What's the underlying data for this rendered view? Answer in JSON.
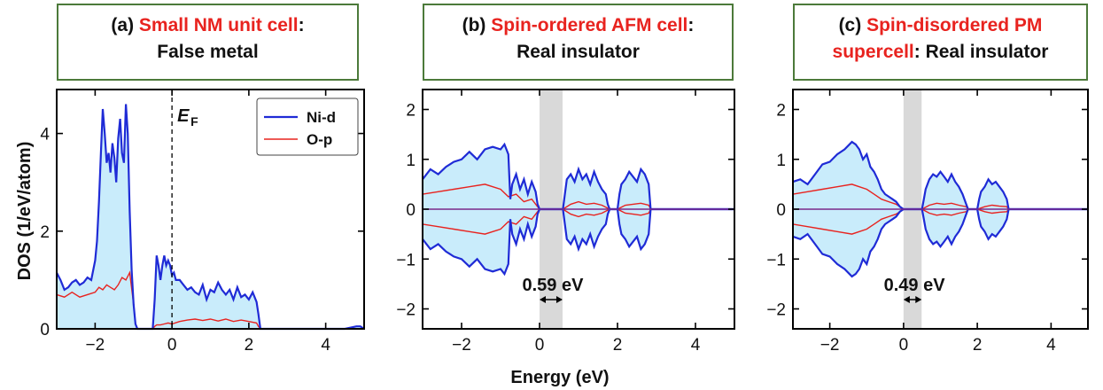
{
  "chart_data": [
    {
      "type": "area",
      "panel_label": "(a)",
      "title_red": "Small NM unit cell",
      "title_rest_line1": ":",
      "title_line2": "False metal",
      "ylabel": "DOS (1/eV/atom)",
      "xlim": [
        -3,
        5
      ],
      "ylim": [
        0,
        4.9
      ],
      "xticks": [
        -2,
        0,
        2,
        4
      ],
      "yticks": [
        0,
        2,
        4
      ],
      "fermi_label_main": "E",
      "fermi_label_sub": "F",
      "legend": [
        "Ni-d",
        "O-p"
      ],
      "series": [
        {
          "name": "Ni-d",
          "color": "#1f2bd6",
          "x": [
            -3.0,
            -2.9,
            -2.8,
            -2.7,
            -2.6,
            -2.5,
            -2.4,
            -2.3,
            -2.2,
            -2.1,
            -2.0,
            -1.95,
            -1.9,
            -1.85,
            -1.8,
            -1.75,
            -1.7,
            -1.65,
            -1.6,
            -1.55,
            -1.5,
            -1.45,
            -1.4,
            -1.35,
            -1.3,
            -1.25,
            -1.2,
            -1.15,
            -1.1,
            -1.05,
            -1.0,
            -0.95,
            -0.9,
            -0.5,
            -0.45,
            -0.4,
            -0.35,
            -0.3,
            -0.25,
            -0.2,
            -0.15,
            -0.1,
            -0.05,
            0.0,
            0.05,
            0.1,
            0.2,
            0.3,
            0.4,
            0.5,
            0.6,
            0.7,
            0.8,
            0.9,
            1.0,
            1.1,
            1.2,
            1.3,
            1.4,
            1.5,
            1.6,
            1.7,
            1.8,
            1.9,
            2.0,
            2.1,
            2.2,
            2.25,
            2.3,
            2.5,
            3.0,
            3.5,
            4.0,
            4.5,
            4.8,
            4.9,
            5.0
          ],
          "values": [
            1.15,
            1.0,
            0.8,
            0.85,
            0.95,
            1.0,
            0.9,
            0.95,
            1.05,
            1.0,
            1.4,
            1.8,
            2.6,
            3.6,
            4.5,
            4.0,
            3.4,
            3.6,
            3.2,
            3.8,
            3.5,
            3.0,
            3.9,
            4.3,
            3.6,
            3.4,
            4.6,
            4.0,
            2.4,
            1.2,
            0.5,
            0.1,
            0.0,
            0.0,
            0.6,
            1.5,
            1.3,
            1.0,
            1.3,
            1.5,
            1.3,
            1.4,
            1.3,
            1.1,
            1.15,
            1.0,
            1.0,
            0.9,
            0.8,
            0.85,
            0.75,
            0.7,
            0.9,
            0.6,
            0.8,
            0.75,
            0.95,
            0.8,
            0.7,
            0.8,
            0.6,
            0.85,
            0.65,
            0.7,
            0.6,
            0.75,
            0.55,
            0.3,
            0.0,
            0.0,
            0.0,
            0.0,
            0.0,
            0.0,
            0.05,
            0.05,
            0.0
          ]
        },
        {
          "name": "O-p",
          "color": "#e8231f",
          "x": [
            -3.0,
            -2.8,
            -2.6,
            -2.4,
            -2.2,
            -2.0,
            -1.9,
            -1.8,
            -1.7,
            -1.6,
            -1.5,
            -1.4,
            -1.3,
            -1.2,
            -1.1,
            -1.0,
            -0.95,
            -0.9,
            -0.5,
            -0.45,
            -0.4,
            -0.3,
            -0.2,
            -0.1,
            0.0,
            0.2,
            0.4,
            0.6,
            0.8,
            1.0,
            1.2,
            1.4,
            1.6,
            1.8,
            2.0,
            2.2,
            2.25,
            2.3,
            5.0
          ],
          "values": [
            0.7,
            0.65,
            0.75,
            0.65,
            0.7,
            0.75,
            0.85,
            0.8,
            0.9,
            0.85,
            0.8,
            0.9,
            1.05,
            1.0,
            1.15,
            0.5,
            0.1,
            0.0,
            0.0,
            0.05,
            0.08,
            0.08,
            0.1,
            0.12,
            0.1,
            0.15,
            0.18,
            0.2,
            0.17,
            0.2,
            0.16,
            0.2,
            0.15,
            0.18,
            0.15,
            0.12,
            0.05,
            0.0,
            0.0
          ]
        }
      ]
    },
    {
      "type": "area",
      "panel_label": "(b)",
      "title_red": "Spin-ordered AFM cell",
      "title_rest_line1": ":",
      "title_line2": "Real insulator",
      "xlim": [
        -3,
        5
      ],
      "ylim": [
        -2.4,
        2.4
      ],
      "xticks": [
        -2,
        0,
        2,
        4
      ],
      "yticks": [
        -2,
        -1,
        0,
        1,
        2
      ],
      "gap": [
        0,
        0.59
      ],
      "gap_label": "0.59 eV",
      "series": [
        {
          "name": "Ni-d",
          "color": "#1f2bd6",
          "x": [
            -3.0,
            -2.8,
            -2.6,
            -2.4,
            -2.2,
            -2.0,
            -1.8,
            -1.6,
            -1.4,
            -1.2,
            -1.0,
            -0.9,
            -0.8,
            -0.75,
            -0.7,
            -0.6,
            -0.5,
            -0.4,
            -0.3,
            -0.2,
            -0.1,
            -0.05,
            0.0,
            0.6,
            0.65,
            0.7,
            0.8,
            0.9,
            1.0,
            1.1,
            1.2,
            1.3,
            1.4,
            1.5,
            1.6,
            1.7,
            1.75,
            1.8,
            2.0,
            2.05,
            2.1,
            2.2,
            2.3,
            2.4,
            2.5,
            2.6,
            2.7,
            2.8,
            2.85,
            5.0
          ],
          "values": [
            0.6,
            0.8,
            0.7,
            0.85,
            0.95,
            1.0,
            1.15,
            1.0,
            1.2,
            1.25,
            1.2,
            1.3,
            1.1,
            0.2,
            0.5,
            0.7,
            0.4,
            0.6,
            0.3,
            0.55,
            0.35,
            0.1,
            0.0,
            0.0,
            0.3,
            0.6,
            0.7,
            0.55,
            0.8,
            0.6,
            0.7,
            0.5,
            0.75,
            0.55,
            0.4,
            0.3,
            0.1,
            0.0,
            0.0,
            0.3,
            0.5,
            0.6,
            0.75,
            0.65,
            0.55,
            0.8,
            0.7,
            0.5,
            0.0,
            0.0
          ]
        },
        {
          "name": "O-p",
          "color": "#e8231f",
          "x": [
            -3.0,
            -2.6,
            -2.2,
            -1.8,
            -1.4,
            -1.0,
            -0.8,
            -0.6,
            -0.4,
            -0.2,
            0.0,
            0.6,
            0.8,
            1.0,
            1.2,
            1.4,
            1.6,
            1.8,
            2.0,
            2.2,
            2.4,
            2.6,
            2.8,
            2.85,
            5.0
          ],
          "values": [
            0.3,
            0.35,
            0.4,
            0.45,
            0.5,
            0.4,
            0.25,
            0.3,
            0.15,
            0.2,
            0.0,
            0.0,
            0.1,
            0.15,
            0.1,
            0.12,
            0.08,
            0.0,
            0.0,
            0.08,
            0.1,
            0.12,
            0.08,
            0.0,
            0.0
          ]
        }
      ]
    },
    {
      "type": "area",
      "panel_label": "(c)",
      "title_red": "Spin-disordered PM",
      "title_red_line2": "supercell",
      "title_rest_line2": ": Real insulator",
      "xlim": [
        -3,
        5
      ],
      "ylim": [
        -2.4,
        2.4
      ],
      "xticks": [
        -2,
        0,
        2,
        4
      ],
      "yticks": [
        -2,
        -1,
        0,
        1,
        2
      ],
      "gap": [
        0,
        0.49
      ],
      "gap_label": "0.49 eV",
      "series": [
        {
          "name": "Ni-d",
          "color": "#1f2bd6",
          "x": [
            -3.0,
            -2.8,
            -2.6,
            -2.4,
            -2.2,
            -2.0,
            -1.8,
            -1.6,
            -1.4,
            -1.3,
            -1.2,
            -1.1,
            -1.0,
            -0.9,
            -0.8,
            -0.7,
            -0.6,
            -0.5,
            -0.4,
            -0.3,
            -0.2,
            -0.1,
            0.0,
            0.5,
            0.55,
            0.6,
            0.7,
            0.8,
            0.9,
            1.0,
            1.1,
            1.2,
            1.3,
            1.4,
            1.5,
            1.6,
            1.7,
            1.75,
            2.0,
            2.05,
            2.1,
            2.2,
            2.3,
            2.4,
            2.5,
            2.6,
            2.7,
            2.8,
            2.85,
            5.0
          ],
          "values": [
            0.55,
            0.6,
            0.5,
            0.7,
            0.9,
            0.95,
            1.1,
            1.2,
            1.35,
            1.3,
            1.2,
            1.0,
            1.1,
            0.85,
            0.75,
            0.6,
            0.4,
            0.3,
            0.25,
            0.2,
            0.15,
            0.05,
            0.0,
            0.0,
            0.2,
            0.4,
            0.6,
            0.7,
            0.65,
            0.75,
            0.65,
            0.55,
            0.7,
            0.55,
            0.45,
            0.3,
            0.1,
            0.0,
            0.0,
            0.2,
            0.35,
            0.45,
            0.6,
            0.5,
            0.55,
            0.45,
            0.35,
            0.2,
            0.0,
            0.0
          ]
        },
        {
          "name": "O-p",
          "color": "#e8231f",
          "x": [
            -3.0,
            -2.6,
            -2.2,
            -1.8,
            -1.4,
            -1.2,
            -1.0,
            -0.8,
            -0.6,
            -0.4,
            -0.2,
            0.0,
            0.5,
            0.7,
            0.9,
            1.1,
            1.3,
            1.5,
            1.7,
            1.75,
            2.0,
            2.2,
            2.4,
            2.6,
            2.8,
            2.85,
            5.0
          ],
          "values": [
            0.3,
            0.35,
            0.4,
            0.45,
            0.5,
            0.45,
            0.4,
            0.3,
            0.2,
            0.15,
            0.1,
            0.0,
            0.0,
            0.08,
            0.12,
            0.1,
            0.12,
            0.08,
            0.05,
            0.0,
            0.0,
            0.05,
            0.08,
            0.06,
            0.05,
            0.0,
            0.0
          ]
        }
      ]
    }
  ],
  "shared": {
    "xlabel": "Energy (eV)",
    "fill_color": "#c9ecfb",
    "gap_color": "#d9d9d9"
  }
}
